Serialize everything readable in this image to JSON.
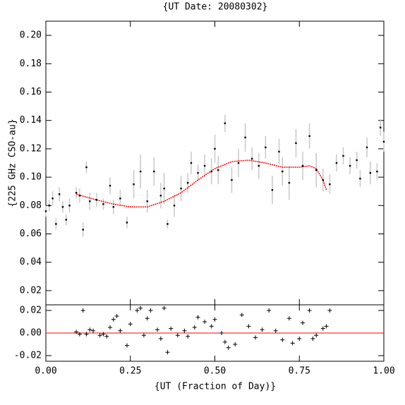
{
  "chart_data": [
    {
      "type": "scatter",
      "title": "{UT Date: 20080302}",
      "ylabel": "{225 GHz CSO-au}",
      "x": [
        0.0,
        0.01,
        0.02,
        0.03,
        0.04,
        0.05,
        0.06,
        0.07,
        0.09,
        0.1,
        0.11,
        0.12,
        0.13,
        0.15,
        0.17,
        0.19,
        0.2,
        0.22,
        0.24,
        0.26,
        0.28,
        0.3,
        0.32,
        0.34,
        0.35,
        0.36,
        0.38,
        0.4,
        0.42,
        0.43,
        0.45,
        0.47,
        0.49,
        0.5,
        0.51,
        0.53,
        0.55,
        0.57,
        0.59,
        0.61,
        0.63,
        0.65,
        0.67,
        0.69,
        0.7,
        0.72,
        0.74,
        0.76,
        0.78,
        0.8,
        0.82,
        0.84,
        0.86,
        0.88,
        0.9,
        0.92,
        0.93,
        0.95,
        0.96,
        0.98,
        0.99,
        1.0
      ],
      "values": [
        0.076,
        0.08,
        0.085,
        0.067,
        0.088,
        0.079,
        0.07,
        0.08,
        0.089,
        0.087,
        0.063,
        0.107,
        0.083,
        0.084,
        0.081,
        0.094,
        0.079,
        0.085,
        0.068,
        0.095,
        0.104,
        0.083,
        0.104,
        0.087,
        0.092,
        0.067,
        0.08,
        0.092,
        0.096,
        0.11,
        0.103,
        0.108,
        0.104,
        0.12,
        0.105,
        0.138,
        0.098,
        0.11,
        0.128,
        0.113,
        0.108,
        0.121,
        0.091,
        0.118,
        0.104,
        0.096,
        0.124,
        0.108,
        0.129,
        0.105,
        0.098,
        0.095,
        0.11,
        0.115,
        0.108,
        0.112,
        0.099,
        0.121,
        0.103,
        0.104,
        0.135,
        0.125
      ],
      "errors": [
        0.004,
        0.004,
        0.005,
        0.004,
        0.005,
        0.004,
        0.004,
        0.005,
        0.004,
        0.005,
        0.005,
        0.004,
        0.006,
        0.005,
        0.004,
        0.006,
        0.005,
        0.006,
        0.004,
        0.01,
        0.012,
        0.008,
        0.01,
        0.009,
        0.011,
        0.003,
        0.008,
        0.009,
        0.007,
        0.008,
        0.006,
        0.008,
        0.009,
        0.01,
        0.01,
        0.006,
        0.009,
        0.01,
        0.01,
        0.008,
        0.009,
        0.008,
        0.01,
        0.009,
        0.01,
        0.012,
        0.01,
        0.01,
        0.009,
        0.012,
        0.008,
        0.007,
        0.006,
        0.006,
        0.006,
        0.006,
        0.006,
        0.007,
        0.008,
        0.006,
        0.006,
        0.007
      ],
      "color": "#000000",
      "error_color": "#c8c8c8",
      "fit": {
        "x": [
          0.09,
          0.15,
          0.2,
          0.25,
          0.3,
          0.35,
          0.4,
          0.45,
          0.5,
          0.55,
          0.6,
          0.65,
          0.7,
          0.75,
          0.78,
          0.8,
          0.82,
          0.83
        ],
        "values": [
          0.088,
          0.084,
          0.081,
          0.079,
          0.079,
          0.083,
          0.089,
          0.098,
          0.106,
          0.111,
          0.112,
          0.11,
          0.107,
          0.107,
          0.108,
          0.106,
          0.098,
          0.091
        ],
        "color": "#ff0000"
      },
      "xlim": [
        0,
        1
      ],
      "ylim": [
        0.01,
        0.21
      ],
      "yticks": [
        0.02,
        0.04,
        0.06,
        0.08,
        {
          "value": 0.1,
          "label": "0.10"
        },
        0.12,
        0.14,
        0.16,
        0.18,
        {
          "value": 0.2,
          "label": "0.20"
        }
      ]
    },
    {
      "type": "scatter",
      "marker": "+",
      "xlabel": "{UT (Fraction of Day)}",
      "x": [
        0.09,
        0.1,
        0.11,
        0.12,
        0.13,
        0.14,
        0.16,
        0.17,
        0.18,
        0.19,
        0.2,
        0.21,
        0.22,
        0.24,
        0.25,
        0.27,
        0.28,
        0.29,
        0.3,
        0.31,
        0.33,
        0.34,
        0.35,
        0.36,
        0.37,
        0.39,
        0.41,
        0.42,
        0.44,
        0.45,
        0.47,
        0.49,
        0.5,
        0.52,
        0.53,
        0.54,
        0.56,
        0.58,
        0.6,
        0.62,
        0.64,
        0.66,
        0.68,
        0.7,
        0.72,
        0.73,
        0.75,
        0.76,
        0.78,
        0.79,
        0.8,
        0.82,
        0.83,
        0.84
      ],
      "values": [
        0.001,
        -0.001,
        0.02,
        -0.001,
        0.003,
        0.002,
        -0.002,
        -0.001,
        -0.003,
        0.005,
        0.012,
        0.015,
        0.002,
        -0.011,
        0.008,
        0.02,
        0.022,
        -0.002,
        0.013,
        0.02,
        0.003,
        -0.005,
        0.022,
        -0.017,
        0.004,
        -0.002,
        0.002,
        -0.003,
        0.005,
        0.014,
        0.01,
        0.006,
        0.012,
        0.0,
        -0.008,
        -0.013,
        -0.01,
        0.016,
        0.006,
        -0.004,
        0.003,
        0.02,
        0.002,
        -0.006,
        0.013,
        -0.009,
        -0.005,
        0.009,
        0.02,
        -0.005,
        -0.002,
        0.004,
        0.006,
        0.02
      ],
      "color": "#000000",
      "reference_line": 0,
      "reference_color": "#ff0000",
      "xlim": [
        0,
        1
      ],
      "ylim": [
        -0.025,
        0.025
      ],
      "yticks": [
        -0.02,
        {
          "value": 0,
          "label": "0.00"
        },
        0.02
      ],
      "xticks": [
        {
          "value": 0,
          "label": "0.00"
        },
        0.25,
        {
          "value": 0.5,
          "label": "0.50"
        },
        0.75,
        {
          "value": 1,
          "label": "1.00"
        }
      ]
    }
  ]
}
